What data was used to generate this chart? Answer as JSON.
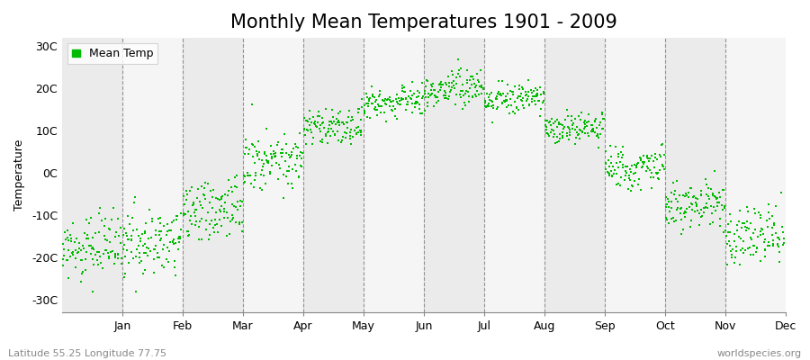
{
  "title": "Monthly Mean Temperatures 1901 - 2009",
  "ylabel": "Temperature",
  "xlabel": "",
  "yticks": [
    -30,
    -20,
    -10,
    0,
    10,
    20,
    30
  ],
  "ytick_labels": [
    "-30C",
    "-20C",
    "-10C",
    "0C",
    "10C",
    "20C",
    "30C"
  ],
  "ylim": [
    -33,
    32
  ],
  "xlim": [
    0,
    12
  ],
  "months": [
    "Jan",
    "Feb",
    "Mar",
    "Apr",
    "May",
    "Jun",
    "Jul",
    "Aug",
    "Sep",
    "Oct",
    "Nov",
    "Dec"
  ],
  "xtick_positions": [
    1,
    2,
    3,
    4,
    5,
    6,
    7,
    8,
    9,
    10,
    11,
    12
  ],
  "mean_temps": [
    -18.5,
    -17.5,
    -9.5,
    2.5,
    10.5,
    16.5,
    19.5,
    17.0,
    10.0,
    1.0,
    -8.0,
    -15.5
  ],
  "std_temps": [
    3.5,
    4.0,
    4.0,
    3.5,
    2.5,
    2.0,
    2.0,
    2.0,
    2.0,
    2.5,
    3.0,
    3.5
  ],
  "trend_per_decade": [
    0.15,
    0.15,
    0.15,
    0.15,
    0.1,
    0.1,
    0.1,
    0.1,
    0.1,
    0.1,
    0.1,
    0.15
  ],
  "n_years": 109,
  "start_year": 1901,
  "dot_color": "#00bb00",
  "dot_size": 3,
  "background_color": "#ffffff",
  "plot_bg_color": "#ffffff",
  "band_color_odd": "#ebebeb",
  "band_color_even": "#f5f5f5",
  "dashed_line_color": "#888888",
  "legend_label": "Mean Temp",
  "bottom_left_text": "Latitude 55.25 Longitude 77.75",
  "bottom_right_text": "worldspecies.org",
  "title_fontsize": 15,
  "axis_fontsize": 9,
  "tick_fontsize": 9,
  "footer_fontsize": 8
}
